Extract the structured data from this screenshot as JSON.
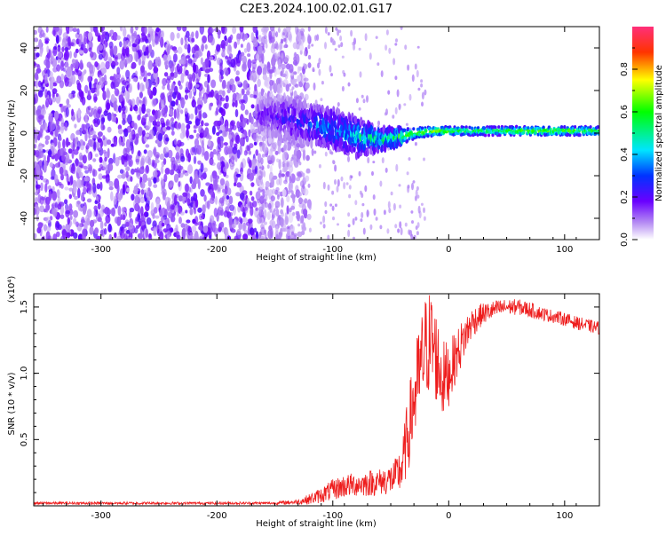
{
  "title": "C2E3.2024.100.02.01.G17",
  "colors": {
    "snr_line": "#ee1c1c",
    "frame": "#000000",
    "background": "#ffffff",
    "spectro_low": "#c6a8f4",
    "spectro_mid": "#7b13f0"
  },
  "colorbar": {
    "label": "Normalized spectral amplitude",
    "ticks": [
      "0.0",
      "0.2",
      "0.4",
      "0.6",
      "0.8"
    ],
    "range": [
      0,
      1
    ]
  },
  "chart_data": [
    {
      "type": "heatmap",
      "title": "C2E3.2024.100.02.01.G17",
      "xlabel": "Height of straight line (km)",
      "ylabel": "Frequency (Hz)",
      "xlim": [
        -358,
        130
      ],
      "ylim": [
        -50,
        50
      ],
      "x_ticks": [
        -300,
        -200,
        -100,
        0,
        100
      ],
      "x_tick_labels": [
        "-300",
        "-200",
        "-100",
        "0",
        "100"
      ],
      "y_ticks": [
        -40,
        -20,
        0,
        20,
        40
      ],
      "y_tick_labels": [
        "-40",
        "-20",
        "0",
        "20",
        "40"
      ],
      "noise_region_x": [
        -358,
        -140
      ],
      "signal_track": {
        "x": [
          -165,
          -140,
          -120,
          -100,
          -80,
          -60,
          -45,
          -30,
          -10,
          10,
          40,
          80,
          130
        ],
        "center_freq": [
          8,
          7,
          4,
          2,
          -2,
          -3,
          -2,
          0,
          1,
          1,
          1,
          1,
          1
        ],
        "half_width": [
          8,
          10,
          9,
          9,
          9,
          5,
          4,
          2.5,
          2,
          2,
          2,
          2,
          2
        ],
        "amplitude": [
          0.18,
          0.25,
          0.3,
          0.4,
          0.45,
          0.55,
          0.6,
          0.65,
          0.72,
          0.6,
          0.58,
          0.7,
          0.62
        ]
      },
      "colorbar_label": "Normalized spectral amplitude"
    },
    {
      "type": "line",
      "xlabel": "Height of straight line (km)",
      "ylabel": "SNR (10 * v/v)",
      "y_multiplier_label": "(x10⁴)",
      "xlim": [
        -358,
        130
      ],
      "ylim": [
        0,
        1.6
      ],
      "x_ticks": [
        -300,
        -200,
        -100,
        0,
        100
      ],
      "x_tick_labels": [
        "-300",
        "-200",
        "-100",
        "0",
        "100"
      ],
      "y_ticks": [
        0.5,
        1.0,
        1.5
      ],
      "y_tick_labels": [
        "0.5",
        "1.0",
        "1.5"
      ],
      "series": [
        {
          "x": [
            -358,
            -300,
            -250,
            -200,
            -150,
            -130,
            -120,
            -110,
            -100,
            -90,
            -80,
            -70,
            -60,
            -50,
            -45,
            -40,
            -35,
            -30,
            -25,
            -20,
            -15,
            -10,
            -5,
            0,
            5,
            10,
            15,
            20,
            25,
            30,
            40,
            50,
            60,
            70,
            80,
            90,
            100,
            110,
            120,
            130
          ],
          "y": [
            0.02,
            0.02,
            0.02,
            0.02,
            0.02,
            0.03,
            0.05,
            0.08,
            0.12,
            0.15,
            0.16,
            0.17,
            0.18,
            0.2,
            0.22,
            0.3,
            0.55,
            0.8,
            1.0,
            1.2,
            1.25,
            1.1,
            0.95,
            1.0,
            1.1,
            1.2,
            1.3,
            1.38,
            1.42,
            1.45,
            1.48,
            1.5,
            1.5,
            1.48,
            1.45,
            1.43,
            1.41,
            1.38,
            1.36,
            1.34
          ],
          "noise_amplitude": [
            0.01,
            0.01,
            0.01,
            0.01,
            0.01,
            0.02,
            0.04,
            0.06,
            0.08,
            0.09,
            0.09,
            0.1,
            0.1,
            0.12,
            0.15,
            0.2,
            0.3,
            0.35,
            0.4,
            0.4,
            0.4,
            0.35,
            0.3,
            0.25,
            0.2,
            0.18,
            0.15,
            0.12,
            0.1,
            0.08,
            0.07,
            0.06,
            0.06,
            0.06,
            0.05,
            0.05,
            0.05,
            0.05,
            0.05,
            0.05
          ]
        }
      ]
    }
  ]
}
